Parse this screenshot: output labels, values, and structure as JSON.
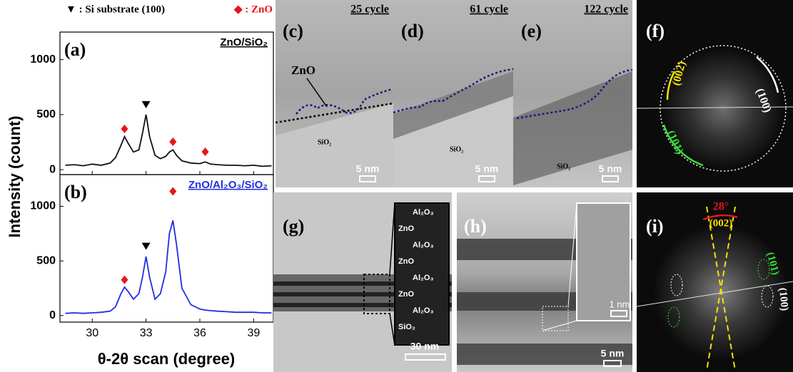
{
  "header": {
    "substrate": "▼ : Si substrate (100)",
    "zno": "◆ : ZnO"
  },
  "axis_labels": {
    "y": "Intensity (count)",
    "x": "θ-2θ scan (degree)"
  },
  "chart_data": [
    {
      "type": "line",
      "label": "(a)",
      "sample": "ZnO/SiO₂",
      "sample_color": "#000000",
      "x": [
        28.5,
        29,
        29.5,
        30,
        30.5,
        31,
        31.3,
        31.6,
        31.8,
        32,
        32.3,
        32.6,
        32.8,
        33,
        33.2,
        33.5,
        33.8,
        34.1,
        34.3,
        34.5,
        34.7,
        35,
        35.5,
        36,
        36.3,
        36.6,
        37,
        37.5,
        38,
        38.5,
        39,
        39.5,
        40
      ],
      "series": [
        {
          "name": "ZnO/SiO₂",
          "color": "#111111",
          "values": [
            40,
            45,
            35,
            50,
            40,
            60,
            110,
            220,
            300,
            240,
            160,
            180,
            330,
            500,
            300,
            130,
            100,
            120,
            160,
            180,
            130,
            80,
            60,
            55,
            70,
            50,
            45,
            40,
            40,
            35,
            40,
            30,
            35
          ]
        }
      ],
      "markers": [
        {
          "shape": "diamond",
          "x": 31.8,
          "y": 370,
          "color": "#e8141b"
        },
        {
          "shape": "triangle",
          "x": 33,
          "y": 590,
          "color": "#000000"
        },
        {
          "shape": "diamond",
          "x": 34.5,
          "y": 253,
          "color": "#e8141b"
        },
        {
          "shape": "diamond",
          "x": 36.3,
          "y": 162,
          "color": "#e8141b"
        }
      ],
      "xlim": [
        28.2,
        40.1
      ],
      "xticks": [
        30,
        33,
        36,
        39
      ],
      "ylim": [
        -45,
        1250
      ],
      "yticks": [
        0,
        500,
        1000
      ]
    },
    {
      "type": "line",
      "label": "(b)",
      "sample": "ZnO/Al₂O₃/SiO₂",
      "sample_color": "#1f2ee0",
      "x": [
        28.5,
        29,
        29.5,
        30,
        30.5,
        31,
        31.3,
        31.6,
        31.8,
        32,
        32.3,
        32.6,
        32.8,
        33,
        33.2,
        33.5,
        33.8,
        34.1,
        34.3,
        34.5,
        34.7,
        35,
        35.5,
        36,
        36.3,
        36.6,
        37,
        37.5,
        38,
        38.5,
        39,
        39.5,
        40
      ],
      "series": [
        {
          "name": "ZnO/Al₂O₃/SiO₂",
          "color": "#1f2ee0",
          "values": [
            20,
            25,
            20,
            25,
            30,
            40,
            80,
            200,
            260,
            220,
            150,
            200,
            350,
            540,
            350,
            150,
            200,
            400,
            750,
            870,
            650,
            250,
            100,
            60,
            50,
            45,
            40,
            35,
            30,
            30,
            30,
            25,
            25
          ]
        }
      ],
      "markers": [
        {
          "shape": "diamond",
          "x": 31.8,
          "y": 327,
          "color": "#e8141b"
        },
        {
          "shape": "triangle",
          "x": 33,
          "y": 634,
          "color": "#000000"
        },
        {
          "shape": "diamond",
          "x": 34.5,
          "y": 1137,
          "color": "#e8141b"
        }
      ],
      "xlim": [
        28.2,
        40.1
      ],
      "xticks": [
        30,
        33,
        36,
        39
      ],
      "ylim": [
        -60,
        1290
      ],
      "yticks": [
        0,
        500,
        1000
      ]
    }
  ],
  "panels": [
    {
      "label": "(c)",
      "cycle": "25 cycle",
      "film": "ZnO",
      "substrate": "SiO₂",
      "scale": "5 nm"
    },
    {
      "label": "(d)",
      "cycle": "61 cycle",
      "substrate": "SiO₂",
      "scale": "5 nm"
    },
    {
      "label": "(e)",
      "cycle": "122 cycle",
      "substrate": "SiO₂",
      "scale": "5 nm"
    },
    {
      "label": "(f)",
      "planes": [
        "(002)",
        "(100)",
        "(101)"
      ]
    },
    {
      "label": "(g)",
      "layers": [
        "Al₂O₃",
        "ZnO",
        "Al₂O₃",
        "ZnO",
        "Al₂O₃",
        "ZnO",
        "Al₂O₃",
        "SiO₂"
      ],
      "scale": "30 nm"
    },
    {
      "label": "(h)",
      "inset_scale": "1 nm",
      "scale": "5 nm"
    },
    {
      "label": "(i)",
      "angle": "28°",
      "planes": [
        "(002)",
        "(101)",
        "(100)"
      ]
    }
  ]
}
